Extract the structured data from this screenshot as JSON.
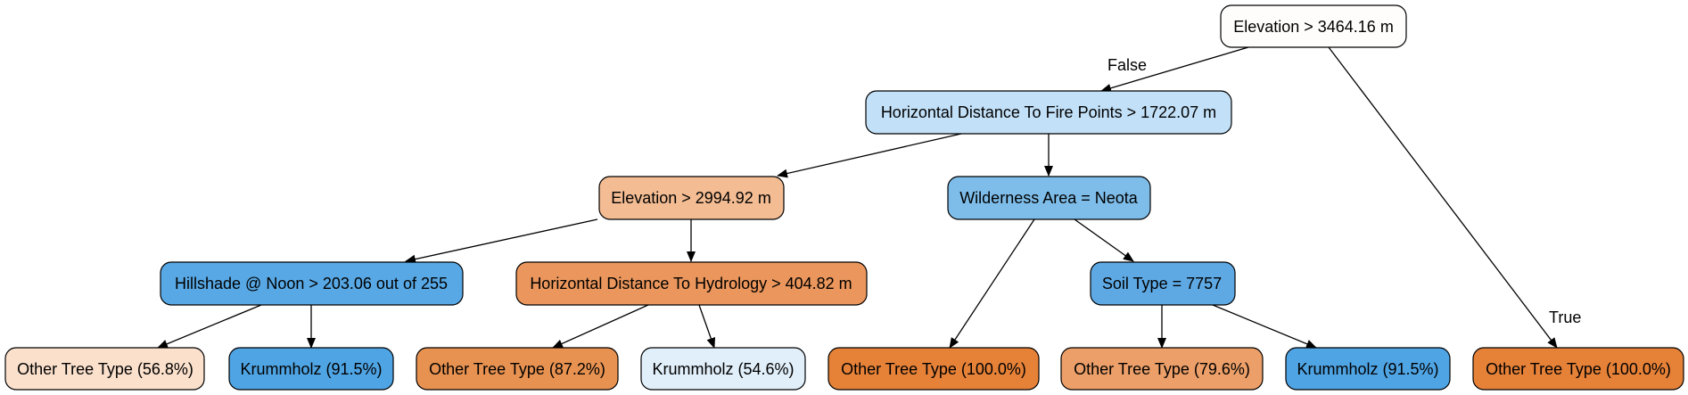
{
  "nodes": {
    "root": {
      "label": "Elevation > 3464.16 m",
      "color": "#fffdfb"
    },
    "n1": {
      "label": "Horizontal Distance To Fire Points > 1722.07 m",
      "color": "#c2e0f7"
    },
    "n2": {
      "label": "Elevation > 2994.92 m",
      "color": "#f3bc93"
    },
    "n3": {
      "label": "Wilderness Area = Neota",
      "color": "#7ebde9"
    },
    "n4": {
      "label": "Hillshade @ Noon > 203.06 out of 255",
      "color": "#58a8e5"
    },
    "n5": {
      "label": "Horizontal Distance To Hydrology > 404.82 m",
      "color": "#ea965c"
    },
    "n6": {
      "label": "Soil Type = 7757",
      "color": "#5ea9e4"
    },
    "l1": {
      "label": "Other Tree Type (56.8%)",
      "color": "#fbe0cc"
    },
    "l2": {
      "label": "Krummholz (91.5%)",
      "color": "#4fa4e4"
    },
    "l3": {
      "label": "Other Tree Type (87.2%)",
      "color": "#e89251"
    },
    "l4": {
      "label": "Krummholz (54.6%)",
      "color": "#e1effa"
    },
    "l5": {
      "label": "Other Tree Type (100.0%)",
      "color": "#e68138"
    },
    "l6": {
      "label": "Other Tree Type (79.6%)",
      "color": "#ec9f68"
    },
    "l7": {
      "label": "Krummholz (91.5%)",
      "color": "#4fa4e4"
    },
    "l8": {
      "label": "Other Tree Type (100.0%)",
      "color": "#e68138"
    }
  },
  "edge_labels": {
    "false_label": "False",
    "true_label": "True"
  }
}
